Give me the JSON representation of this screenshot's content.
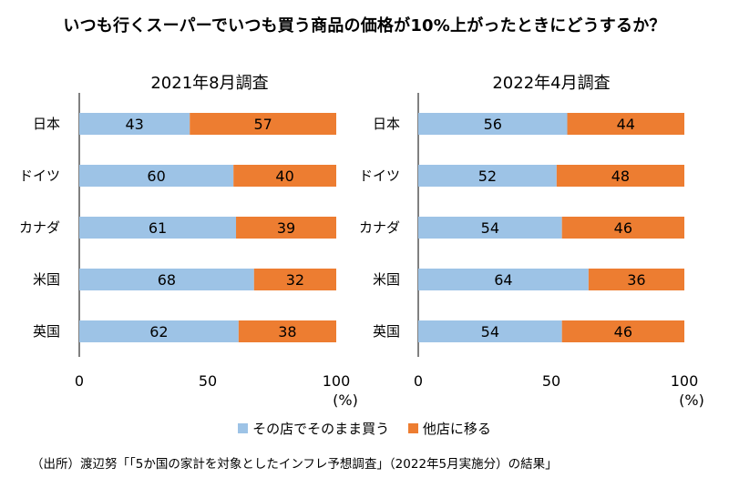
{
  "title": "いつも行くスーパーでいつも買う商品の価格が10%上がったときにどうするか？",
  "legend": [
    {
      "label": "その店でそのまま買う",
      "color": "#9dc3e6"
    },
    {
      "label": "他店に移る",
      "color": "#ed7d31"
    }
  ],
  "source": "（出所）渡辺努「「5か国の家計を対象としたインフレ予想調査」（2022年5月実施分）の結果」",
  "chart_data": [
    {
      "type": "bar",
      "orientation": "horizontal",
      "stacked": true,
      "title": "2021年8月調査",
      "unit": "(%)",
      "categories": [
        "日本",
        "ドイツ",
        "カナダ",
        "米国",
        "英国"
      ],
      "series": [
        {
          "name": "その店でそのまま買う",
          "values": [
            43,
            60,
            61,
            68,
            62
          ]
        },
        {
          "name": "他店に移る",
          "values": [
            57,
            40,
            39,
            32,
            38
          ]
        }
      ],
      "xlim": [
        0,
        100
      ],
      "xticks": [
        0,
        50,
        100
      ]
    },
    {
      "type": "bar",
      "orientation": "horizontal",
      "stacked": true,
      "title": "2022年4月調査",
      "unit": "(%)",
      "categories": [
        "日本",
        "ドイツ",
        "カナダ",
        "米国",
        "英国"
      ],
      "series": [
        {
          "name": "その店でそのまま買う",
          "values": [
            56,
            52,
            54,
            64,
            54
          ]
        },
        {
          "name": "他店に移る",
          "values": [
            44,
            48,
            46,
            36,
            46
          ]
        }
      ],
      "xlim": [
        0,
        100
      ],
      "xticks": [
        0,
        50,
        100
      ]
    }
  ]
}
